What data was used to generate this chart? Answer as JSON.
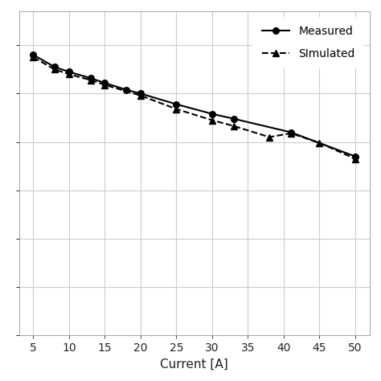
{
  "measured_x": [
    5,
    8,
    10,
    13,
    15,
    18,
    20,
    25,
    30,
    33,
    41,
    50
  ],
  "measured_y": [
    0.88,
    0.855,
    0.845,
    0.832,
    0.822,
    0.808,
    0.8,
    0.778,
    0.758,
    0.748,
    0.72,
    0.67
  ],
  "simulated_x": [
    5,
    8,
    10,
    13,
    15,
    20,
    25,
    30,
    33,
    38,
    41,
    45,
    50
  ],
  "simulated_y": [
    0.875,
    0.85,
    0.84,
    0.828,
    0.818,
    0.796,
    0.768,
    0.745,
    0.733,
    0.71,
    0.718,
    0.698,
    0.665
  ],
  "measured_label": "Measured",
  "simulated_label": "SImulated",
  "xlabel": "Current [A]",
  "xlim": [
    3,
    52
  ],
  "ylim": [
    0.3,
    0.97
  ],
  "xticks": [
    5,
    10,
    15,
    20,
    25,
    30,
    35,
    40,
    45,
    50
  ],
  "yticks": [
    0.3,
    0.4,
    0.5,
    0.6,
    0.7,
    0.8,
    0.9
  ],
  "grid_color": "#cccccc",
  "line_color": "#000000",
  "bg_color": "#ffffff",
  "legend_loc": "upper right"
}
